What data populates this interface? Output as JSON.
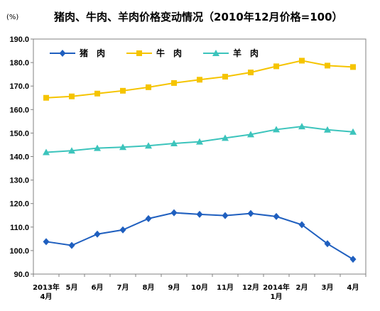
{
  "unit_label": "(%)",
  "colors": {
    "pork": "#1f5fbf",
    "beef": "#f5c400",
    "mutton": "#3cc4bc"
  },
  "chart_data": {
    "type": "line",
    "title": "猪肉、牛肉、羊肉价格变动情况（2010年12月价格=100）",
    "ylim": [
      90,
      190
    ],
    "yticks": [
      "90.0",
      "100.0",
      "110.0",
      "120.0",
      "130.0",
      "140.0",
      "150.0",
      "160.0",
      "170.0",
      "180.0",
      "190.0"
    ],
    "categories": [
      [
        "2013年",
        "4月"
      ],
      [
        "5月"
      ],
      [
        "6月"
      ],
      [
        "7月"
      ],
      [
        "8月"
      ],
      [
        "9月"
      ],
      [
        "10月"
      ],
      [
        "11月"
      ],
      [
        "12月"
      ],
      [
        "2014年",
        "1月"
      ],
      [
        "2月"
      ],
      [
        "3月"
      ],
      [
        "4月"
      ]
    ],
    "legend_position": "top-left",
    "series": [
      {
        "name": "猪　肉",
        "marker": "diamond",
        "color": "#1f5fbf",
        "values": [
          103.8,
          102.2,
          107.0,
          108.8,
          113.6,
          116.1,
          115.4,
          114.9,
          115.8,
          114.5,
          111.0,
          102.9,
          96.3
        ]
      },
      {
        "name": "牛　肉",
        "marker": "square",
        "color": "#f5c400",
        "values": [
          165.0,
          165.6,
          166.8,
          168.0,
          169.5,
          171.3,
          172.7,
          174.0,
          175.8,
          178.4,
          180.8,
          178.7,
          178.1
        ]
      },
      {
        "name": "羊　肉",
        "marker": "triangle",
        "color": "#3cc4bc",
        "values": [
          141.8,
          142.5,
          143.6,
          144.0,
          144.6,
          145.6,
          146.3,
          147.9,
          149.4,
          151.5,
          152.8,
          151.4,
          150.5
        ]
      }
    ]
  }
}
